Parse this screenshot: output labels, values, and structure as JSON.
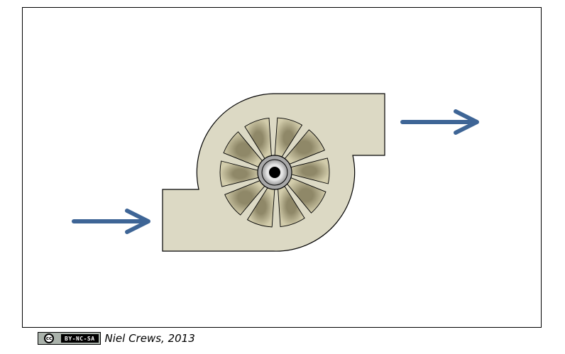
{
  "diagram": {
    "colors": {
      "housing": "#dcd9c4",
      "blade": "#ccc6a2",
      "outline": "#000000",
      "arrow": "#3e6596",
      "hub_ring": "#bbbbbb"
    },
    "icons": [
      "centrifugal-fan-icon",
      "inlet-arrow-icon",
      "outlet-arrow-icon"
    ],
    "blade_count": 10
  },
  "footer": {
    "license_label": "BY-NC-SA",
    "license_logo": "cc",
    "credit": "Niel Crews, 2013"
  }
}
